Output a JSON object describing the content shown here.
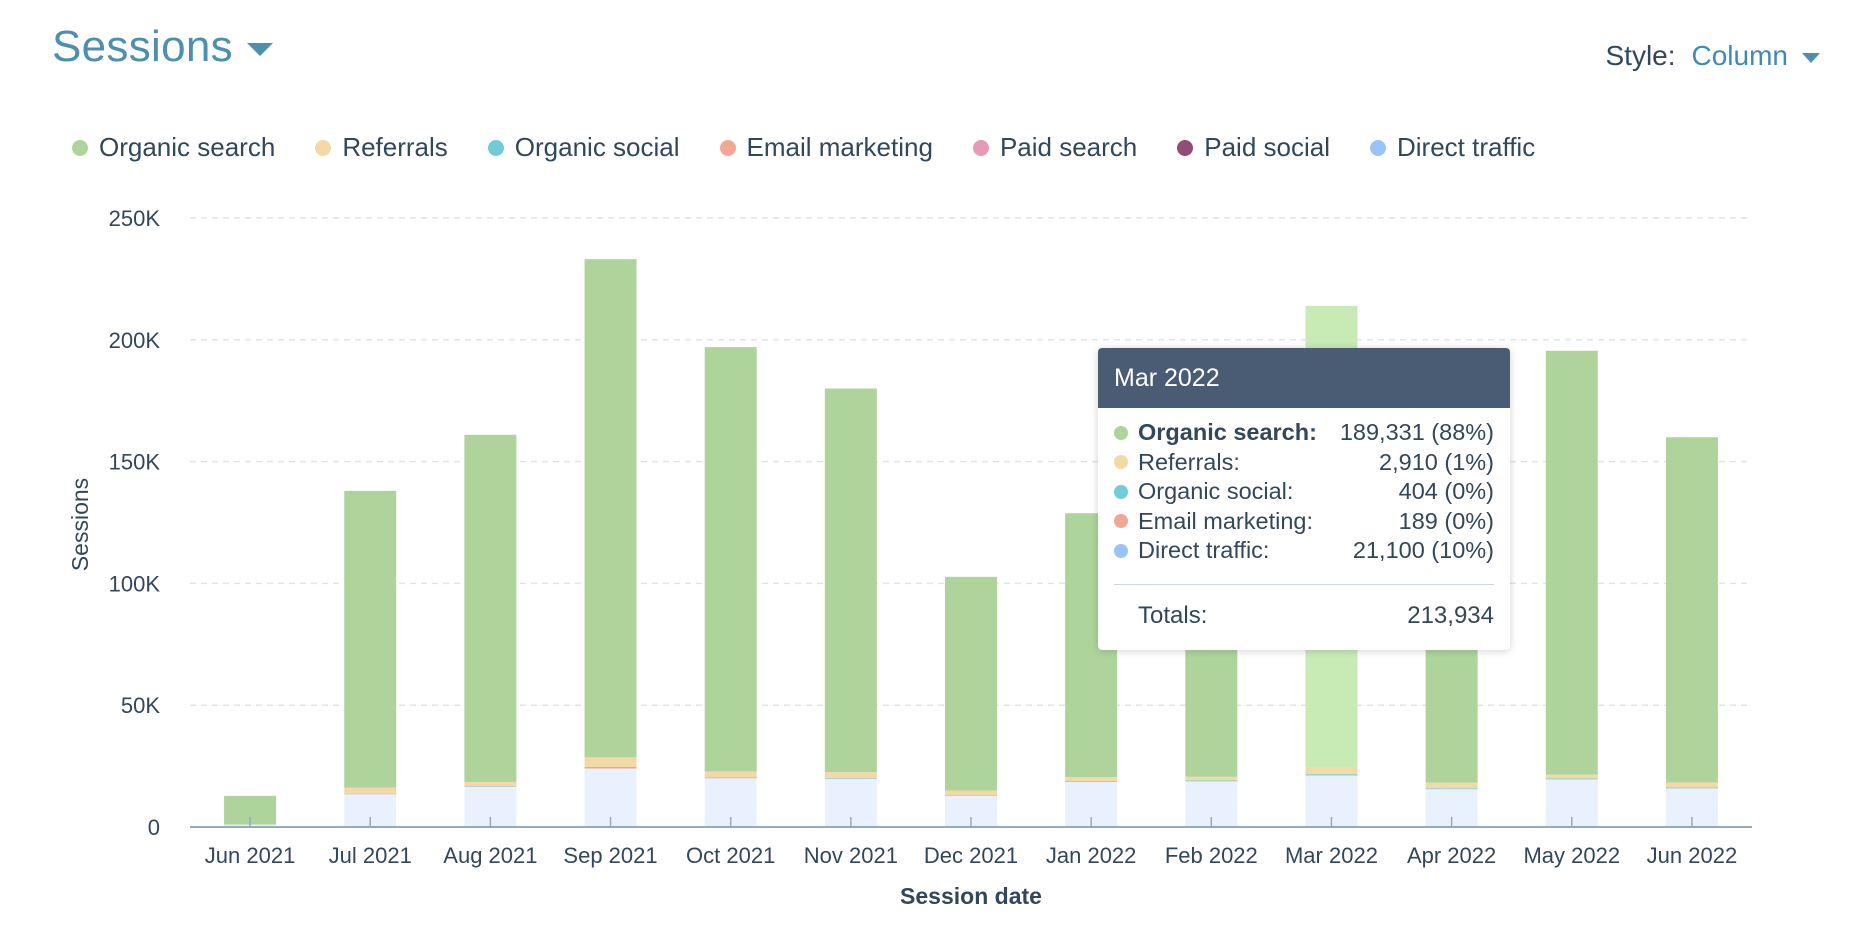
{
  "header": {
    "title": "Sessions"
  },
  "style_select": {
    "label": "Style:",
    "value": "Column"
  },
  "colors": {
    "organic_search": "#aed49b",
    "organic_search_highlight": "#c8ebb6",
    "referrals": "#f4d9a7",
    "organic_social": "#70ccd8",
    "email_marketing": "#f0a895",
    "paid_search": "#e59ab7",
    "paid_social": "#914d74",
    "direct_traffic": "#e8f1fd",
    "direct_traffic_dot": "#9ac4f7",
    "grid": "#dfe3eb",
    "axis": "#99a9bd"
  },
  "legend": [
    {
      "label": "Organic search",
      "color": "#aed49b"
    },
    {
      "label": "Referrals",
      "color": "#f4d9a7"
    },
    {
      "label": "Organic social",
      "color": "#70ccd8"
    },
    {
      "label": "Email marketing",
      "color": "#f0a895"
    },
    {
      "label": "Paid search",
      "color": "#e59ab7"
    },
    {
      "label": "Paid social",
      "color": "#914d74"
    },
    {
      "label": "Direct traffic",
      "color": "#9ac4f7"
    }
  ],
  "chart_data": {
    "type": "bar",
    "stacked": true,
    "xlabel": "Session date",
    "ylabel": "Sessions",
    "ylim": [
      0,
      250000
    ],
    "yticks": [
      0,
      50000,
      100000,
      150000,
      200000,
      250000
    ],
    "ytick_labels": [
      "0",
      "50K",
      "100K",
      "150K",
      "200K",
      "250K"
    ],
    "grid": true,
    "legend_position": "top-left",
    "categories": [
      "Jun 2021",
      "Jul 2021",
      "Aug 2021",
      "Sep 2021",
      "Oct 2021",
      "Nov 2021",
      "Dec 2021",
      "Jan 2022",
      "Feb 2022",
      "Mar 2022",
      "Apr 2022",
      "May 2022",
      "Jun 2022"
    ],
    "series": [
      {
        "name": "Direct traffic",
        "values": [
          1000,
          13400,
          16500,
          24000,
          20000,
          19800,
          12800,
          18500,
          18700,
          21100,
          15500,
          19500,
          15800
        ]
      },
      {
        "name": "Email marketing",
        "values": [
          0,
          100,
          100,
          200,
          100,
          100,
          100,
          100,
          100,
          189,
          100,
          100,
          100
        ]
      },
      {
        "name": "Organic social",
        "values": [
          0,
          200,
          200,
          400,
          300,
          300,
          200,
          300,
          300,
          404,
          300,
          300,
          300
        ]
      },
      {
        "name": "Referrals",
        "values": [
          0,
          2500,
          1700,
          4000,
          2400,
          2300,
          1900,
          1600,
          1500,
          2910,
          2300,
          1600,
          2100
        ]
      },
      {
        "name": "Paid search",
        "values": [
          0,
          0,
          0,
          0,
          0,
          0,
          0,
          0,
          0,
          0,
          0,
          0,
          0
        ]
      },
      {
        "name": "Paid social",
        "values": [
          0,
          0,
          0,
          0,
          0,
          0,
          0,
          0,
          0,
          0,
          0,
          0,
          0
        ]
      },
      {
        "name": "Organic search",
        "values": [
          11800,
          121800,
          142500,
          204500,
          174200,
          157500,
          87700,
          108300,
          137000,
          189331,
          154200,
          174000,
          141700
        ]
      }
    ],
    "highlighted_category": "Mar 2022"
  },
  "tooltip": {
    "title": "Mar 2022",
    "rows": [
      {
        "label": "Organic search:",
        "value": "189,331 (88%)",
        "color": "#aed49b",
        "bold": true
      },
      {
        "label": "Referrals:",
        "value": "2,910 (1%)",
        "color": "#f4d9a7",
        "bold": false
      },
      {
        "label": "Organic social:",
        "value": "404 (0%)",
        "color": "#70ccd8",
        "bold": false
      },
      {
        "label": "Email marketing:",
        "value": "189 (0%)",
        "color": "#f0a895",
        "bold": false
      },
      {
        "label": "Direct traffic:",
        "value": "21,100 (10%)",
        "color": "#9ac4f7",
        "bold": false
      }
    ],
    "total_label": "Totals:",
    "total_value": "213,934"
  }
}
